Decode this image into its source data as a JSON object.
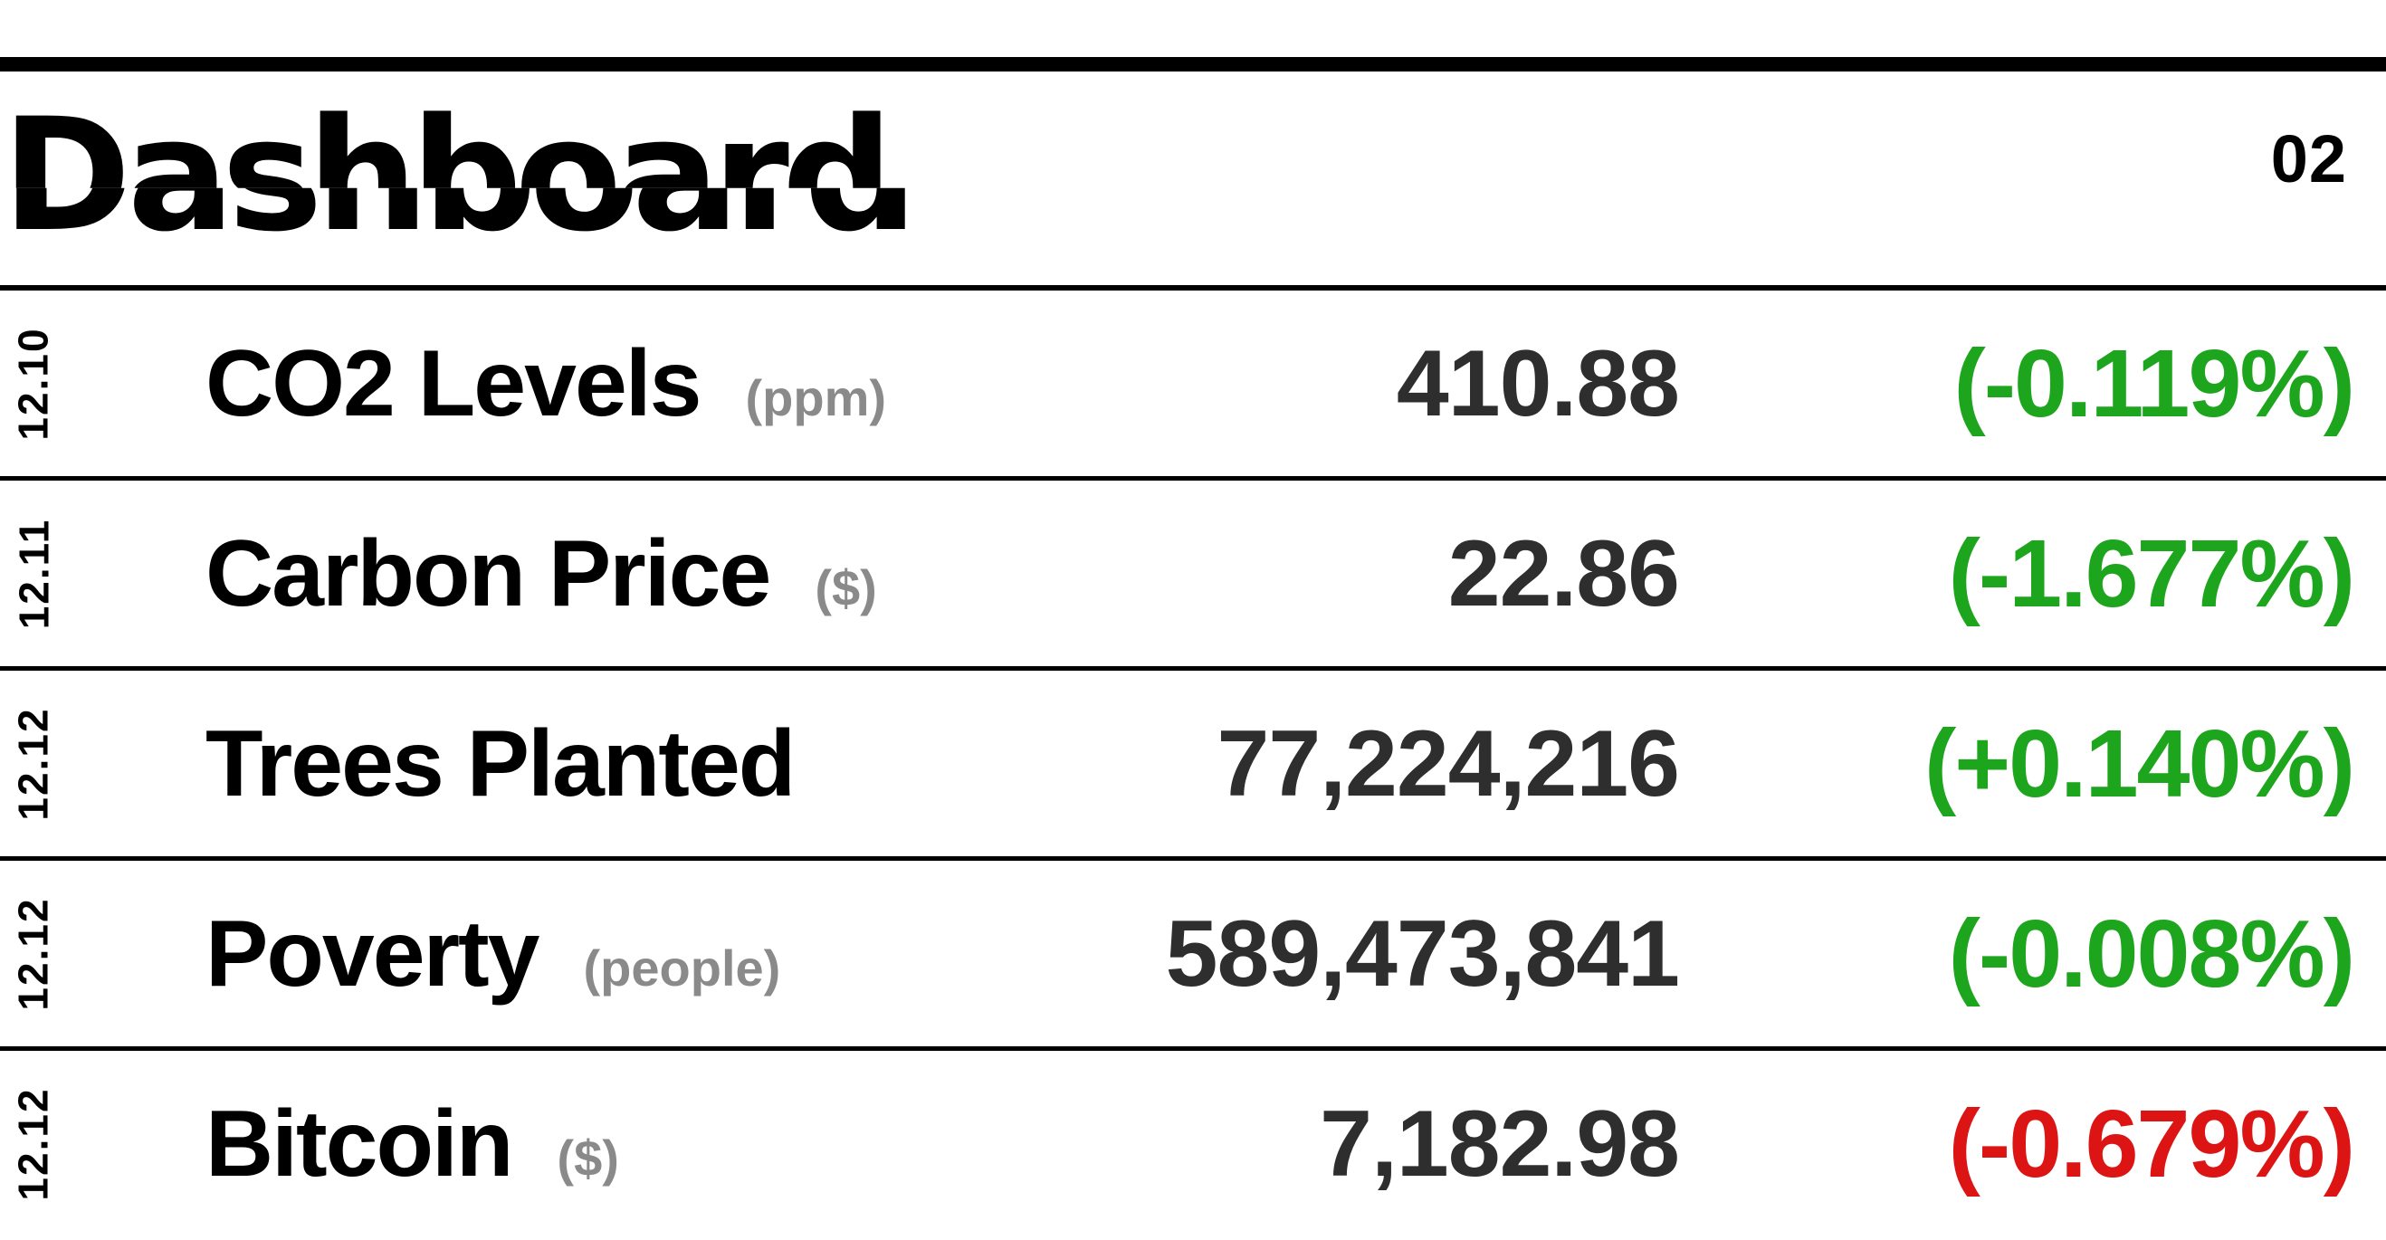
{
  "header": {
    "title": "Dashboard",
    "page_number": "02"
  },
  "colors": {
    "positive": "#1EA51E",
    "negative": "#DC1414",
    "value": "#2E2E2E",
    "unit": "#8A8A8A",
    "ink": "#000000"
  },
  "table": {
    "rows": [
      {
        "date": "12.10",
        "name": "CO2 Levels",
        "unit": "(ppm)",
        "value": "410.88",
        "change": "(-0.119%)",
        "direction": "positive"
      },
      {
        "date": "12.11",
        "name": "Carbon Price",
        "unit": "($)",
        "value": "22.86",
        "change": "(-1.677%)",
        "direction": "positive"
      },
      {
        "date": "12.12",
        "name": "Trees Planted",
        "unit": "",
        "value": "77,224,216",
        "change": "(+0.140%)",
        "direction": "positive"
      },
      {
        "date": "12.12",
        "name": "Poverty",
        "unit": "(people)",
        "value": "589,473,841",
        "change": "(-0.008%)",
        "direction": "positive"
      },
      {
        "date": "12.12",
        "name": "Bitcoin",
        "unit": "($)",
        "value": "7,182.98",
        "change": "(-0.679%)",
        "direction": "negative"
      }
    ]
  }
}
